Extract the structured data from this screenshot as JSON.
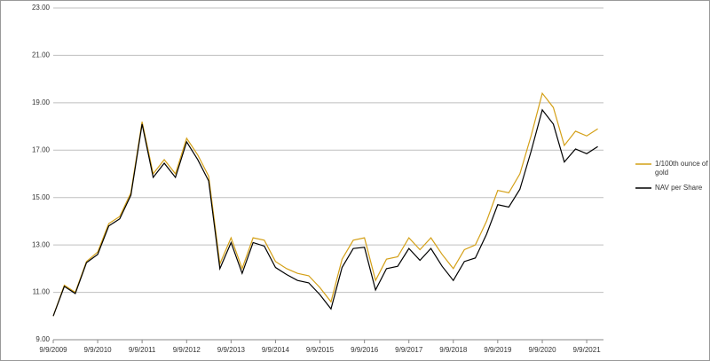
{
  "chart_data": {
    "type": "line",
    "x": [
      "9/9/2009",
      "12/9/2009",
      "3/9/2010",
      "6/9/2010",
      "9/9/2010",
      "12/9/2010",
      "3/9/2011",
      "6/9/2011",
      "9/9/2011",
      "12/9/2011",
      "3/9/2012",
      "6/9/2012",
      "9/9/2012",
      "12/9/2012",
      "3/9/2013",
      "6/9/2013",
      "9/9/2013",
      "12/9/2013",
      "3/9/2014",
      "6/9/2014",
      "9/9/2014",
      "12/9/2014",
      "3/9/2015",
      "6/9/2015",
      "9/9/2015",
      "12/9/2015",
      "3/9/2016",
      "6/9/2016",
      "9/9/2016",
      "12/9/2016",
      "3/9/2017",
      "6/9/2017",
      "9/9/2017",
      "12/9/2017",
      "3/9/2018",
      "6/9/2018",
      "9/9/2018",
      "12/9/2018",
      "3/9/2019",
      "6/9/2019",
      "9/9/2019",
      "12/9/2019",
      "3/9/2020",
      "6/9/2020",
      "9/9/2020",
      "12/9/2020",
      "3/9/2021",
      "6/9/2021",
      "9/9/2021",
      "12/9/2021"
    ],
    "series": [
      {
        "name": "1/100th ounce of gold",
        "color": "#d4a017",
        "values": [
          10.0,
          11.3,
          11.0,
          12.3,
          12.7,
          13.9,
          14.2,
          15.2,
          18.2,
          16.0,
          16.6,
          16.0,
          17.5,
          16.8,
          15.9,
          12.2,
          13.3,
          12.0,
          13.3,
          13.2,
          12.3,
          12.0,
          11.8,
          11.7,
          11.2,
          10.6,
          12.4,
          13.2,
          13.3,
          11.5,
          12.4,
          12.5,
          13.3,
          12.8,
          13.3,
          12.6,
          12.0,
          12.8,
          13.0,
          14.0,
          15.3,
          15.2,
          16.0,
          17.6,
          19.4,
          18.8,
          17.2,
          17.8,
          17.6,
          17.9
        ]
      },
      {
        "name": "NAV per Share",
        "color": "#000000",
        "values": [
          10.0,
          11.25,
          10.95,
          12.25,
          12.6,
          13.8,
          14.1,
          15.1,
          18.1,
          15.85,
          16.45,
          15.85,
          17.35,
          16.6,
          15.7,
          12.0,
          13.1,
          11.8,
          13.1,
          12.95,
          12.05,
          11.75,
          11.5,
          11.4,
          10.9,
          10.3,
          12.05,
          12.85,
          12.9,
          11.1,
          12.0,
          12.1,
          12.85,
          12.35,
          12.85,
          12.1,
          11.5,
          12.3,
          12.45,
          13.45,
          14.7,
          14.6,
          15.35,
          16.95,
          18.7,
          18.1,
          16.5,
          17.05,
          16.85,
          17.15
        ]
      }
    ],
    "xlim": [
      "9/9/2009",
      "1/25/2022"
    ],
    "xticks": [
      "9/9/2009",
      "9/9/2010",
      "9/9/2011",
      "9/9/2012",
      "9/9/2013",
      "9/9/2014",
      "9/9/2015",
      "9/9/2016",
      "9/9/2017",
      "9/9/2018",
      "9/9/2019",
      "9/9/2020",
      "9/9/2021"
    ],
    "ylim": [
      9,
      23
    ],
    "yticks": [
      {
        "value": 9,
        "label": "9.00"
      },
      {
        "value": 11,
        "label": "11.00"
      },
      {
        "value": 13,
        "label": "13.00"
      },
      {
        "value": 15,
        "label": "15.00"
      },
      {
        "value": 17,
        "label": "17.00"
      },
      {
        "value": 19,
        "label": "19.00"
      },
      {
        "value": 21,
        "label": "21.00"
      },
      {
        "value": 23,
        "label": "23.00"
      }
    ],
    "grid": true,
    "legend": "right"
  }
}
